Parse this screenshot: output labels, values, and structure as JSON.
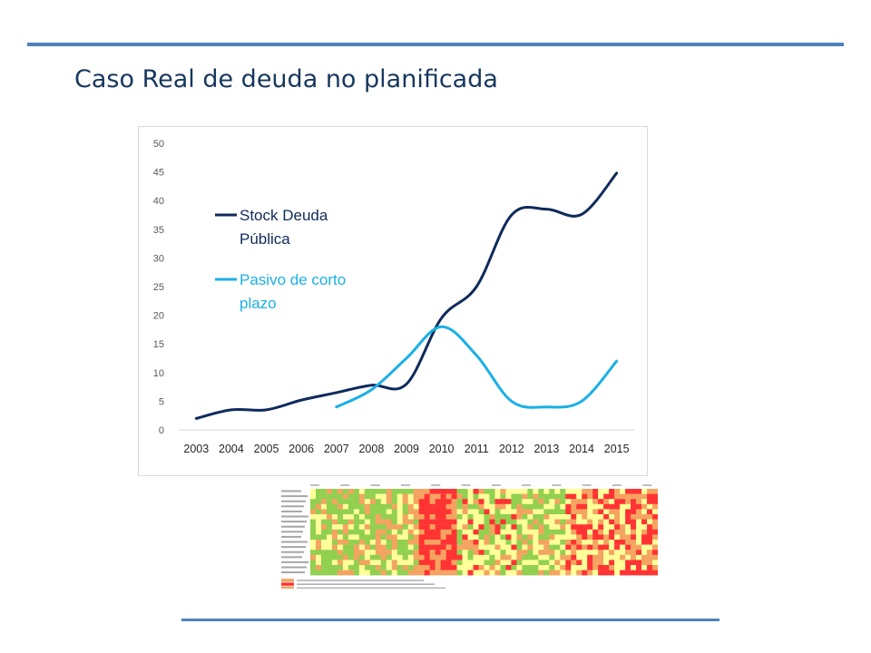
{
  "slide": {
    "title": "Caso Real de deuda no planificada"
  },
  "chart_data": {
    "type": "line",
    "x": [
      2003,
      2004,
      2005,
      2006,
      2007,
      2008,
      2009,
      2010,
      2011,
      2012,
      2013,
      2014,
      2015
    ],
    "ylim": [
      0,
      50
    ],
    "yticks": [
      0,
      5,
      10,
      15,
      20,
      25,
      30,
      35,
      40,
      45,
      50
    ],
    "grid": false,
    "legend_position": "top-left",
    "series": [
      {
        "name": "Stock Deuda Pública",
        "color": "#0f2a5c",
        "values": [
          2,
          3.5,
          3.5,
          5.2,
          6.5,
          7.8,
          8,
          19.5,
          25,
          37.5,
          38.5,
          37.6,
          44.8
        ]
      },
      {
        "name": "Pasivo de corto plazo",
        "color": "#1ab0e6",
        "values": [
          null,
          null,
          null,
          null,
          4,
          7,
          12.5,
          18,
          13,
          5,
          4,
          5,
          12
        ]
      }
    ]
  },
  "heatmap": {
    "colors": [
      "#ffff99",
      "#92d050",
      "#f4a460",
      "#ff3333"
    ]
  }
}
